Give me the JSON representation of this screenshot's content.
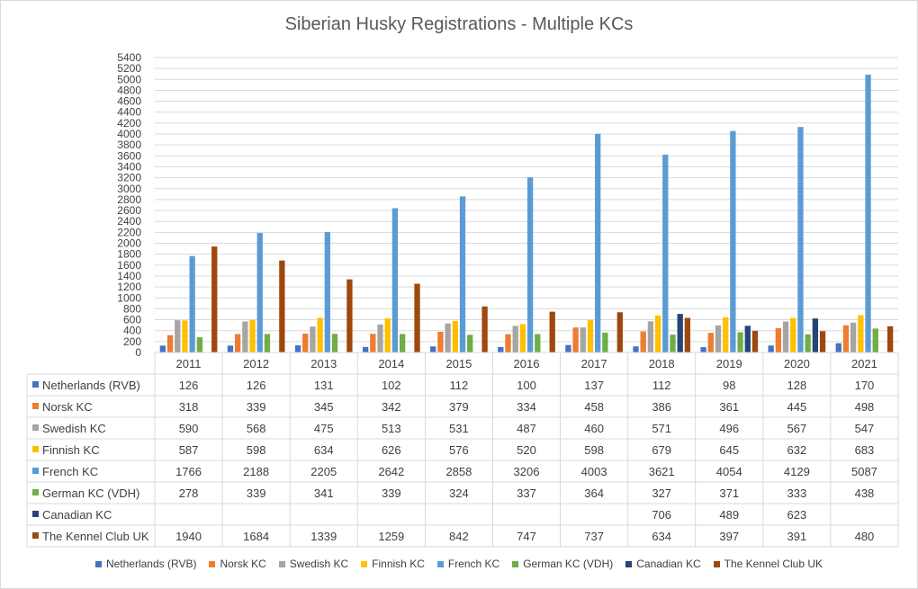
{
  "chart_data": {
    "type": "bar",
    "title": "Siberian Husky Registrations - Multiple KCs",
    "xlabel": "",
    "ylabel": "",
    "ylim": [
      0,
      5400
    ],
    "ytick_step": 200,
    "grid": true,
    "legend_position": "bottom",
    "data_table": true,
    "categories": [
      "2011",
      "2012",
      "2013",
      "2014",
      "2015",
      "2016",
      "2017",
      "2018",
      "2019",
      "2020",
      "2021"
    ],
    "series": [
      {
        "name": "Netherlands (RVB)",
        "color": "#4472c4",
        "values": [
          126,
          126,
          131,
          102,
          112,
          100,
          137,
          112,
          98,
          128,
          170
        ]
      },
      {
        "name": "Norsk KC",
        "color": "#ed7d31",
        "values": [
          318,
          339,
          345,
          342,
          379,
          334,
          458,
          386,
          361,
          445,
          498
        ]
      },
      {
        "name": "Swedish KC",
        "color": "#a5a5a5",
        "values": [
          590,
          568,
          475,
          513,
          531,
          487,
          460,
          571,
          496,
          567,
          547
        ]
      },
      {
        "name": "Finnish KC",
        "color": "#ffc000",
        "values": [
          587,
          598,
          634,
          626,
          576,
          520,
          598,
          679,
          645,
          632,
          683
        ]
      },
      {
        "name": "French KC",
        "color": "#5b9bd5",
        "values": [
          1766,
          2188,
          2205,
          2642,
          2858,
          3206,
          4003,
          3621,
          4054,
          4129,
          5087
        ]
      },
      {
        "name": "German KC (VDH)",
        "color": "#70ad47",
        "values": [
          278,
          339,
          341,
          339,
          324,
          337,
          364,
          327,
          371,
          333,
          438
        ]
      },
      {
        "name": "Canadian KC",
        "color": "#264478",
        "values": [
          null,
          null,
          null,
          null,
          null,
          null,
          null,
          706,
          489,
          623,
          null
        ]
      },
      {
        "name": "The Kennel Club UK",
        "color": "#9e480e",
        "values": [
          1940,
          1684,
          1339,
          1259,
          842,
          747,
          737,
          634,
          397,
          391,
          480
        ]
      }
    ]
  }
}
